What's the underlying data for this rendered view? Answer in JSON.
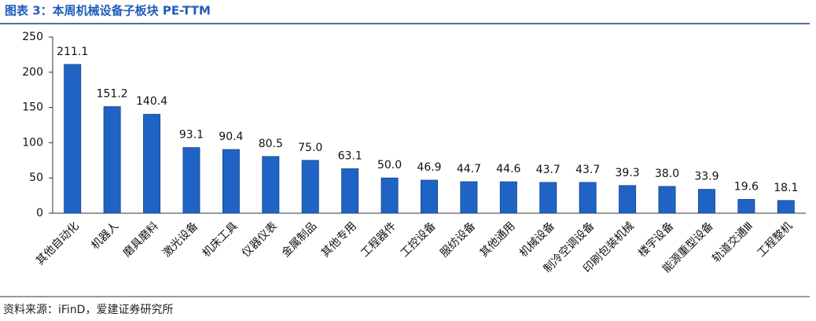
{
  "chart_data": {
    "type": "bar",
    "title": "图表 3：本周机械设备子板块 PE-TTM",
    "source": "资料来源：iFinD，爱建证券研究所",
    "categories": [
      "其他自动化",
      "机器人",
      "磨具磨料",
      "激光设备",
      "机床工具",
      "仪器仪表",
      "金属制品",
      "其他专用",
      "工程器件",
      "工控设备",
      "服纺设备",
      "其他通用",
      "机械设备",
      "制冷空调设备",
      "印刷包装机械",
      "楼宇设备",
      "能源重型设备",
      "轨道交通Ⅲ",
      "工程整机"
    ],
    "values": [
      211.1,
      151.2,
      140.4,
      93.1,
      90.4,
      80.5,
      75.0,
      63.1,
      50.0,
      46.9,
      44.7,
      44.6,
      43.7,
      43.7,
      39.3,
      38.0,
      33.9,
      19.6,
      18.1
    ],
    "value_labels": [
      "211.1",
      "151.2",
      "140.4",
      "93.1",
      "90.4",
      "80.5",
      "75.0",
      "63.1",
      "50.0",
      "46.9",
      "44.7",
      "44.6",
      "43.7",
      "43.7",
      "39.3",
      "38.0",
      "33.9",
      "19.6",
      "18.1"
    ],
    "color": "#1f64c4",
    "ylim": [
      0,
      250
    ],
    "yticks": [
      0,
      50,
      100,
      150,
      200,
      250
    ],
    "grid": false
  }
}
